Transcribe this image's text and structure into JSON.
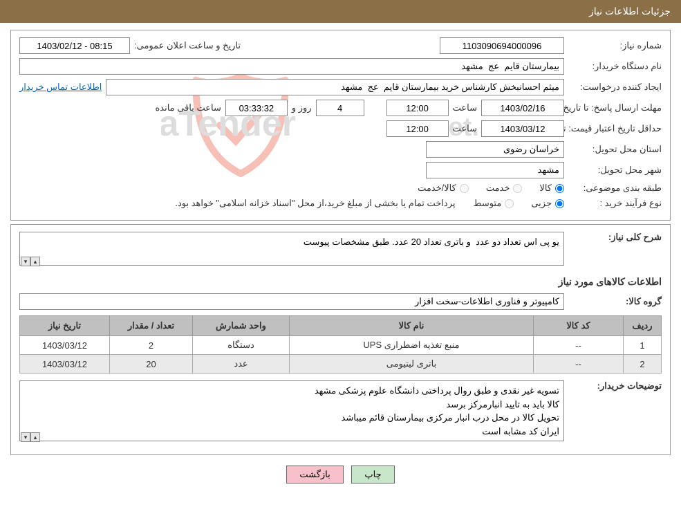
{
  "header": {
    "title": "جزئیات اطلاعات نیاز"
  },
  "fields": {
    "need_no_label": "شماره نیاز:",
    "need_no": "1103090694000096",
    "announce_label": "تاریخ و ساعت اعلان عمومی:",
    "announce_value": "1403/02/12 - 08:15",
    "buyer_org_label": "نام دستگاه خریدار:",
    "buyer_org": "بیمارستان قایم  عج  مشهد",
    "requester_label": "ایجاد کننده درخواست:",
    "requester": "میثم احسانبخش کارشناس خرید بیمارستان قایم  عج  مشهد",
    "contact_link": "اطلاعات تماس خریدار",
    "deadline_label": "مهلت ارسال پاسخ: تا تاریخ:",
    "deadline_date": "1403/02/16",
    "time_label": "ساعت",
    "deadline_time": "12:00",
    "days": "4",
    "days_label": "روز و",
    "countdown": "03:33:32",
    "remain_label": "ساعت باقی مانده",
    "validity_label": "حداقل تاریخ اعتبار قیمت: تا تاریخ:",
    "validity_date": "1403/03/12",
    "validity_time": "12:00",
    "province_label": "استان محل تحویل:",
    "province": "خراسان رضوی",
    "city_label": "شهر محل تحویل:",
    "city": "مشهد",
    "category_label": "طبقه بندی موضوعی:",
    "cat_goods": "کالا",
    "cat_service": "خدمت",
    "cat_both": "کالا/خدمت",
    "process_label": "نوع فرآیند خرید :",
    "proc_small": "جزیی",
    "proc_medium": "متوسط",
    "process_note": "پرداخت تمام یا بخشی از مبلغ خرید،از محل \"اسناد خزانه اسلامی\" خواهد بود."
  },
  "info": {
    "summary_label": "شرح کلی نیاز:",
    "summary": "یو پی اس تعداد دو عدد  و باتری تعداد 20 عدد. طبق مشخصات پیوست",
    "goods_title": "اطلاعات کالاهای مورد نیاز",
    "group_label": "گروه کالا:",
    "group": "کامپیوتر و فناوری اطلاعات-سخت افزار",
    "buyer_notes_label": "توضیحات خریدار:",
    "buyer_notes": "تسویه غیر نقدی و طبق روال پرداختی دانشگاه علوم پزشکی مشهد\nکالا باید به تایید انبارمرکز برسد\nتحویل کالا در محل درب انبار مرکزی بیمارستان قائم میباشد\nایران کد مشابه است"
  },
  "table": {
    "headers": {
      "row": "ردیف",
      "code": "کد کالا",
      "name": "نام کالا",
      "unit": "واحد شمارش",
      "qty": "تعداد / مقدار",
      "date": "تاریخ نیاز"
    },
    "rows": [
      {
        "n": "1",
        "code": "--",
        "name": "منبع تغذیه اضطراری UPS",
        "unit": "دستگاه",
        "qty": "2",
        "date": "1403/03/12"
      },
      {
        "n": "2",
        "code": "--",
        "name": "باتری لیتیومی",
        "unit": "عدد",
        "qty": "20",
        "date": "1403/03/12"
      }
    ]
  },
  "buttons": {
    "print": "چاپ",
    "back": "بازگشت"
  },
  "watermark": {
    "shield_stroke": "#e94b35",
    "text1": "AriaTender",
    "text2": ".net",
    "text_color": "#bdbdbd"
  },
  "colors": {
    "header_bg": "#8b6f47",
    "table_header_bg": "#c0c0c0",
    "row_alt_bg": "#eaeaea",
    "btn_print_bg": "#c8e6c9",
    "btn_back_bg": "#f8c0c8"
  }
}
